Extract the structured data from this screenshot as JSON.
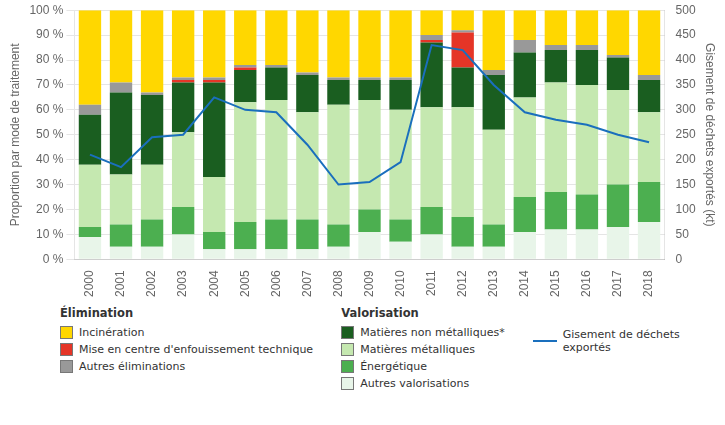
{
  "chart_data": {
    "type": "bar",
    "stacked": true,
    "grid": true,
    "categories": [
      "2000",
      "2001",
      "2002",
      "2003",
      "2004",
      "2005",
      "2006",
      "2007",
      "2008",
      "2009",
      "2010",
      "2011",
      "2012",
      "2013",
      "2014",
      "2015",
      "2016",
      "2017",
      "2018"
    ],
    "ylabel": "Proportion par mode de traitement",
    "y2label": "Gisement de déchets exportés (kt)",
    "ylim": [
      0,
      100
    ],
    "yticks": [
      {
        "value": 0,
        "label": "0 %"
      },
      {
        "value": 10,
        "label": "10 %"
      },
      {
        "value": 20,
        "label": "20 %"
      },
      {
        "value": 30,
        "label": "30 %"
      },
      {
        "value": 40,
        "label": "40 %"
      },
      {
        "value": 50,
        "label": "50 %"
      },
      {
        "value": 60,
        "label": "60 %"
      },
      {
        "value": 70,
        "label": "70 %"
      },
      {
        "value": 80,
        "label": "80 %"
      },
      {
        "value": 90,
        "label": "90 %"
      },
      {
        "value": 100,
        "label": "100 %"
      }
    ],
    "y2lim": [
      0,
      500
    ],
    "y2ticks": [
      0,
      50,
      100,
      150,
      200,
      250,
      300,
      350,
      400,
      450,
      500
    ],
    "series": [
      {
        "name": "Autres valorisations",
        "color": "#e8f5e9",
        "values": [
          9,
          5,
          5,
          10,
          4,
          4,
          4,
          4,
          5,
          11,
          7,
          10,
          5,
          5,
          11,
          12,
          12,
          13,
          15
        ]
      },
      {
        "name": "Énergétique",
        "color": "#4caf50",
        "values": [
          4,
          9,
          11,
          11,
          7,
          11,
          12,
          12,
          9,
          9,
          9,
          11,
          12,
          9,
          14,
          15,
          14,
          17,
          16
        ]
      },
      {
        "name": "Matières métalliques",
        "color": "#c5e8b0",
        "values": [
          25,
          20,
          22,
          30,
          22,
          48,
          48,
          43,
          48,
          44,
          44,
          40,
          44,
          38,
          40,
          44,
          44,
          38,
          28
        ]
      },
      {
        "name": "Matières non métalliques*",
        "color": "#1a5e20",
        "values": [
          20,
          33,
          28,
          20,
          38,
          13,
          13,
          15,
          10,
          8,
          12,
          26,
          16,
          22,
          18,
          13,
          14,
          13,
          13
        ]
      },
      {
        "name": "Mise en centre d'enfouissement technique",
        "color": "#E53527",
        "values": [
          0,
          0,
          0,
          1,
          1,
          1,
          0,
          0,
          0,
          0,
          0,
          1,
          14,
          0,
          0,
          0,
          0,
          0,
          0
        ]
      },
      {
        "name": "Autres éliminations",
        "color": "#999999",
        "values": [
          4,
          4,
          1,
          1,
          1,
          1,
          1,
          1,
          1,
          1,
          1,
          2,
          1,
          2,
          5,
          2,
          2,
          1,
          2
        ]
      },
      {
        "name": "Incinération",
        "color": "#FFD700",
        "values": [
          38,
          29,
          33,
          27,
          27,
          22,
          22,
          25,
          27,
          27,
          27,
          10,
          8,
          24,
          12,
          14,
          14,
          18,
          26
        ]
      },
      {
        "name": "Gisement de déchets\nexportés",
        "type": "line",
        "axis": "y2",
        "color": "#1a6fbd",
        "values": [
          210,
          185,
          245,
          250,
          325,
          300,
          295,
          230,
          150,
          155,
          195,
          430,
          420,
          350,
          295,
          280,
          270,
          250,
          235
        ]
      }
    ],
    "legend_groups": [
      {
        "title": "Élimination",
        "items": [
          "Incinération",
          "Mise en centre d'enfouissement technique",
          "Autres éliminations"
        ]
      },
      {
        "title": "Valorisation",
        "items": [
          "Matières non métalliques*",
          "Matières métalliques",
          "Énergétique",
          "Autres valorisations"
        ]
      }
    ]
  }
}
